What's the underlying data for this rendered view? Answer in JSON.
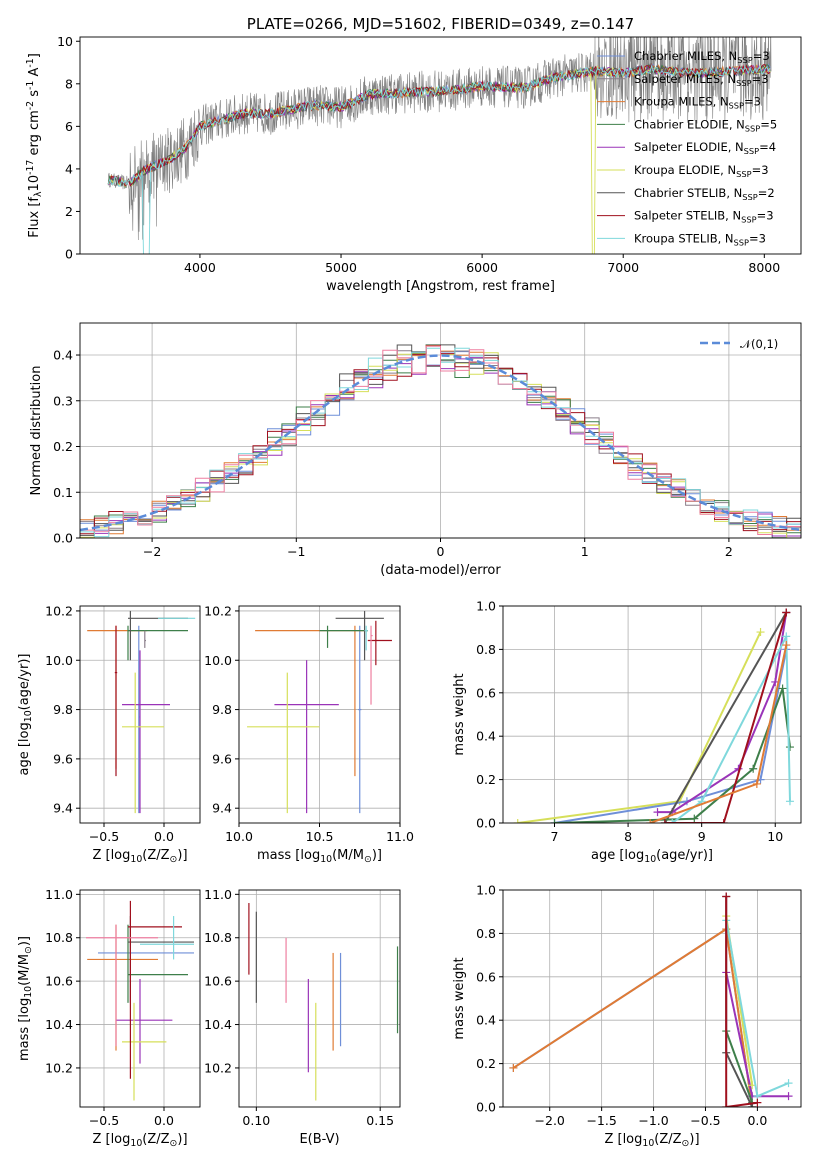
{
  "colors": {
    "Chabrier MILES": "#6f8fd8",
    "Salpeter MILES": "#8a7f8a",
    "Kroupa MILES": "#e07b34",
    "Chabrier ELODIE": "#3e7f4a",
    "Salpeter ELODIE": "#9a34b8",
    "Kroupa ELODIE": "#d6df5a",
    "Chabrier STELIB": "#555555",
    "Salpeter STELIB": "#a0101e",
    "Kroupa STELIB": "#7fd8dc",
    "normal": "#5b8bd8",
    "data": "#808080",
    "pink": "#ee7fa0"
  },
  "chart_data": [
    {
      "id": "spectrum",
      "type": "line",
      "title": "PLATE=0266, MJD=51602, FIBERID=0349, z=0.147",
      "xlabel": "wavelength [Angstrom, rest frame]",
      "ylabel": "Flux [f$_\\lambda$10$^{-17}$ erg cm$^{-2}$ s$^{-1}$ A$^{-1}$]",
      "xlim": [
        3150,
        8260
      ],
      "ylim": [
        0,
        10.2
      ],
      "xticks": [
        "4000",
        "5000",
        "6000",
        "7000",
        "8000"
      ],
      "yticks": [
        "0",
        "2",
        "4",
        "6",
        "8",
        "10"
      ],
      "grid": false,
      "legend_position": "top-right",
      "continuum": {
        "x": [
          3350,
          3500,
          3600,
          3800,
          3900,
          4000,
          4100,
          4300,
          4500,
          4800,
          5000,
          5200,
          5500,
          5800,
          6000,
          6300,
          6500,
          6800,
          7000,
          7200,
          7500,
          7800,
          8050
        ],
        "y": [
          3.5,
          3.3,
          3.9,
          4.5,
          5.0,
          6.0,
          6.2,
          6.6,
          6.6,
          7.0,
          6.9,
          7.5,
          7.6,
          7.7,
          7.9,
          7.8,
          8.3,
          8.6,
          8.5,
          8.7,
          8.5,
          8.6,
          8.7
        ]
      },
      "series": [
        {
          "name": "Chabrier MILES",
          "label": "Chabrier MILES, N$_{SSP}$=3"
        },
        {
          "name": "Salpeter MILES",
          "label": "Salpeter MILES, N$_{SSP}$=3"
        },
        {
          "name": "Kroupa MILES",
          "label": "Kroupa MILES, N$_{SSP}$=3"
        },
        {
          "name": "Chabrier ELODIE",
          "label": "Chabrier ELODIE, N$_{SSP}$=5"
        },
        {
          "name": "Salpeter ELODIE",
          "label": "Salpeter ELODIE, N$_{SSP}$=4"
        },
        {
          "name": "Kroupa ELODIE",
          "label": "Kroupa ELODIE, N$_{SSP}$=3"
        },
        {
          "name": "Chabrier STELIB",
          "label": "Chabrier STELIB, N$_{SSP}$=2"
        },
        {
          "name": "Salpeter STELIB",
          "label": "Salpeter STELIB, N$_{SSP}$=3"
        },
        {
          "name": "Kroupa STELIB",
          "label": "Kroupa STELIB, N$_{SSP}$=3"
        }
      ]
    },
    {
      "id": "residuals",
      "type": "line",
      "xlabel": "(data-model)/error",
      "ylabel": "Normed distribution",
      "xlim": [
        -2.5,
        2.5
      ],
      "ylim": [
        0,
        0.47
      ],
      "xticks": [
        "−2",
        "−1",
        "0",
        "1",
        "2"
      ],
      "xtick_values": [
        -2,
        -1,
        0,
        1,
        2
      ],
      "yticks": [
        "0.0",
        "0.1",
        "0.2",
        "0.3",
        "0.4"
      ],
      "ytick_values": [
        0,
        0.1,
        0.2,
        0.3,
        0.4
      ],
      "grid": true,
      "legend_position": "top-right",
      "normal_label": "$\\mathcal{N}(0,1)$",
      "bin_width": 0.1
    },
    {
      "id": "z-age",
      "type": "scatter",
      "xlabel": "Z [log$_{10}$(Z/Z$_\\odot$)]",
      "ylabel": "age  [log$_{10}$(age/yr)]",
      "xlim": [
        -0.7,
        0.3
      ],
      "ylim": [
        9.34,
        10.22
      ],
      "xticks": [
        "−0.5",
        "0.0"
      ],
      "xtick_values": [
        -0.5,
        0.0
      ],
      "yticks": [
        "9.4",
        "9.6",
        "9.8",
        "10.0",
        "10.2"
      ],
      "ytick_values": [
        9.4,
        9.6,
        9.8,
        10.0,
        10.2
      ],
      "grid": true,
      "points": [
        {
          "s": "Chabrier MILES",
          "x": -0.21,
          "xe": [
            -0.21,
            -0.2
          ],
          "y": 9.77,
          "ye": [
            9.38,
            10.14
          ]
        },
        {
          "s": "Kroupa MILES",
          "x": -0.4,
          "xe": [
            -0.64,
            -0.14
          ],
          "y": 10.12,
          "ye": [
            9.56,
            10.14
          ]
        },
        {
          "s": "Chabrier ELODIE",
          "x": -0.3,
          "xe": [
            -0.3,
            0.2
          ],
          "y": 10.12,
          "ye": [
            10.0,
            10.14
          ]
        },
        {
          "s": "Salpeter ELODIE",
          "x": -0.2,
          "xe": [
            -0.35,
            0.05
          ],
          "y": 9.82,
          "ye": [
            9.38,
            10.04
          ]
        },
        {
          "s": "Kroupa ELODIE",
          "x": -0.24,
          "xe": [
            -0.35,
            0.0
          ],
          "y": 9.73,
          "ye": [
            9.38,
            9.95
          ]
        },
        {
          "s": "Chabrier STELIB",
          "x": -0.28,
          "xe": [
            -0.3,
            0.2
          ],
          "y": 10.17,
          "ye": [
            10.0,
            10.2
          ]
        },
        {
          "s": "Salpeter STELIB",
          "x": -0.4,
          "xe": [
            -0.41,
            -0.39
          ],
          "y": 9.95,
          "ye": [
            9.53,
            10.14
          ]
        },
        {
          "s": "Kroupa STELIB",
          "x": 0.08,
          "xe": [
            -0.05,
            0.26
          ],
          "y": 10.17,
          "ye": [
            10.17,
            10.17
          ]
        },
        {
          "s": "Salpeter MILES",
          "x": -0.16,
          "xe": [
            -0.16,
            -0.15
          ],
          "y": 10.08,
          "ye": [
            10.05,
            10.12
          ]
        }
      ]
    },
    {
      "id": "mass-age",
      "type": "scatter",
      "xlabel": "mass [log$_{10}$(M/M$_\\odot$)]",
      "ylabel": "",
      "xlim": [
        10.0,
        11.0
      ],
      "ylim": [
        9.34,
        10.22
      ],
      "xticks": [
        "10.0",
        "10.5",
        "11.0"
      ],
      "xtick_values": [
        10.0,
        10.5,
        11.0
      ],
      "yticks": [
        "9.4",
        "9.6",
        "9.8",
        "10.0",
        "10.2"
      ],
      "ytick_values": [
        9.4,
        9.6,
        9.8,
        10.0,
        10.2
      ],
      "grid": true,
      "points": [
        {
          "s": "Chabrier MILES",
          "x": 10.75,
          "xe": [
            10.74,
            10.76
          ],
          "y": 9.8,
          "ye": [
            9.38,
            10.14
          ]
        },
        {
          "s": "Kroupa MILES",
          "x": 10.72,
          "xe": [
            10.1,
            10.8
          ],
          "y": 10.12,
          "ye": [
            9.53,
            10.14
          ]
        },
        {
          "s": "Chabrier ELODIE",
          "x": 10.55,
          "xe": [
            10.5,
            10.8
          ],
          "y": 10.12,
          "ye": [
            10.05,
            10.14
          ]
        },
        {
          "s": "Salpeter ELODIE",
          "x": 10.42,
          "xe": [
            10.22,
            10.62
          ],
          "y": 9.82,
          "ye": [
            9.38,
            10.0
          ]
        },
        {
          "s": "Kroupa ELODIE",
          "x": 10.3,
          "xe": [
            10.05,
            10.5
          ],
          "y": 9.73,
          "ye": [
            9.38,
            9.95
          ]
        },
        {
          "s": "Chabrier STELIB",
          "x": 10.78,
          "xe": [
            10.6,
            10.9
          ],
          "y": 10.17,
          "ye": [
            10.0,
            10.2
          ]
        },
        {
          "s": "Salpeter STELIB",
          "x": 10.85,
          "xe": [
            10.8,
            10.95
          ],
          "y": 10.08,
          "ye": [
            9.98,
            10.16
          ]
        },
        {
          "s": "Kroupa STELIB",
          "x": 10.79,
          "xe": [
            10.78,
            10.8
          ],
          "y": 10.12,
          "ye": [
            10.04,
            10.14
          ]
        },
        {
          "s": "pink",
          "x": 10.82,
          "xe": [
            10.82,
            10.83
          ],
          "y": 10.1,
          "ye": [
            9.82,
            10.14
          ]
        }
      ]
    },
    {
      "id": "age-weight",
      "type": "line",
      "xlabel": "age  [log$_{10}$(age/yr)]",
      "ylabel": "mass weight",
      "xlim": [
        6.3,
        10.35
      ],
      "ylim": [
        0,
        1.0
      ],
      "xticks": [
        "7",
        "8",
        "9",
        "10"
      ],
      "xtick_values": [
        7,
        8,
        9,
        10
      ],
      "yticks": [
        "0.0",
        "0.2",
        "0.4",
        "0.6",
        "0.8",
        "1.0"
      ],
      "ytick_values": [
        0,
        0.2,
        0.4,
        0.6,
        0.8,
        1.0
      ],
      "grid": true,
      "series": [
        {
          "s": "Kroupa ELODIE",
          "x": [
            6.5,
            8.7,
            9.8
          ],
          "y": [
            0.0,
            0.1,
            0.88
          ]
        },
        {
          "s": "Chabrier MILES",
          "x": [
            7.0,
            8.8,
            9.8,
            10.15
          ],
          "y": [
            0.0,
            0.1,
            0.2,
            0.8
          ]
        },
        {
          "s": "Salpeter ELODIE",
          "x": [
            8.4,
            8.6,
            9.5,
            10.0,
            10.15
          ],
          "y": [
            0.05,
            0.05,
            0.25,
            0.65,
            0.97
          ]
        },
        {
          "s": "Chabrier STELIB",
          "x": [
            8.5,
            10.15
          ],
          "y": [
            0.0,
            0.97
          ]
        },
        {
          "s": "Chabrier ELODIE",
          "x": [
            7.0,
            8.9,
            9.7,
            10.1,
            10.2
          ],
          "y": [
            0.0,
            0.02,
            0.25,
            0.62,
            0.35
          ]
        },
        {
          "s": "Kroupa STELIB",
          "x": [
            8.6,
            9.0,
            10.15,
            10.2
          ],
          "y": [
            0.0,
            0.1,
            0.86,
            0.1
          ]
        },
        {
          "s": "Salpeter STELIB",
          "x": [
            8.5,
            9.3,
            10.15
          ],
          "y": [
            0.0,
            0.0,
            0.97
          ]
        },
        {
          "s": "Kroupa MILES",
          "x": [
            8.3,
            9.75,
            10.15
          ],
          "y": [
            0.0,
            0.18,
            0.82
          ]
        }
      ]
    },
    {
      "id": "z-mass",
      "type": "scatter",
      "xlabel": "Z [log$_{10}$(Z/Z$_\\odot$)]",
      "ylabel": "mass [log$_{10}$(M/M$_\\odot$)]",
      "xlim": [
        -0.7,
        0.3
      ],
      "ylim": [
        10.02,
        11.02
      ],
      "xticks": [
        "−0.5",
        "0.0"
      ],
      "xtick_values": [
        -0.5,
        0.0
      ],
      "yticks": [
        "10.2",
        "10.4",
        "10.6",
        "10.8",
        "11.0"
      ],
      "ytick_values": [
        10.2,
        10.4,
        10.6,
        10.8,
        11.0
      ],
      "grid": true,
      "points": [
        {
          "s": "Chabrier MILES",
          "x": -0.3,
          "xe": [
            -0.55,
            0.25
          ],
          "y": 10.73,
          "ye": [
            10.73,
            10.73
          ]
        },
        {
          "s": "Kroupa MILES",
          "x": -0.4,
          "xe": [
            -0.64,
            -0.05
          ],
          "y": 10.7,
          "ye": [
            10.28,
            10.86
          ]
        },
        {
          "s": "Chabrier ELODIE",
          "x": -0.3,
          "xe": [
            -0.3,
            0.2
          ],
          "y": 10.63,
          "ye": [
            10.5,
            10.86
          ]
        },
        {
          "s": "Salpeter ELODIE",
          "x": -0.2,
          "xe": [
            -0.4,
            0.07
          ],
          "y": 10.42,
          "ye": [
            10.22,
            10.61
          ]
        },
        {
          "s": "Kroupa ELODIE",
          "x": -0.25,
          "xe": [
            -0.35,
            0.02
          ],
          "y": 10.32,
          "ye": [
            10.05,
            10.5
          ]
        },
        {
          "s": "Chabrier STELIB",
          "x": -0.28,
          "xe": [
            -0.3,
            0.25
          ],
          "y": 10.78,
          "ye": [
            10.5,
            10.9
          ]
        },
        {
          "s": "Salpeter STELIB",
          "x": -0.28,
          "xe": [
            -0.3,
            0.15
          ],
          "y": 10.85,
          "ye": [
            10.15,
            10.97
          ]
        },
        {
          "s": "Kroupa STELIB",
          "x": 0.08,
          "xe": [
            -0.2,
            0.25
          ],
          "y": 10.77,
          "ye": [
            10.7,
            10.9
          ]
        },
        {
          "s": "pink",
          "x": -0.4,
          "xe": [
            -0.65,
            -0.05
          ],
          "y": 10.8,
          "ye": [
            10.3,
            10.86
          ]
        }
      ]
    },
    {
      "id": "ebv-mass",
      "type": "scatter",
      "xlabel": "E(B-V)",
      "ylabel": "",
      "xlim": [
        0.093,
        0.158
      ],
      "ylim": [
        10.02,
        11.02
      ],
      "xticks": [
        "0.10",
        "0.15"
      ],
      "xtick_values": [
        0.1,
        0.15
      ],
      "yticks": [
        "10.2",
        "10.4",
        "10.6",
        "10.8",
        "11.0"
      ],
      "ytick_values": [
        10.2,
        10.4,
        10.6,
        10.8,
        11.0
      ],
      "grid": true,
      "points": [
        {
          "s": "Salpeter STELIB",
          "x": 0.097,
          "ye": [
            10.63,
            10.96
          ]
        },
        {
          "s": "Chabrier STELIB",
          "x": 0.1,
          "ye": [
            10.5,
            10.92
          ]
        },
        {
          "s": "pink",
          "x": 0.112,
          "ye": [
            10.5,
            10.8
          ]
        },
        {
          "s": "Salpeter ELODIE",
          "x": 0.121,
          "ye": [
            10.18,
            10.61
          ]
        },
        {
          "s": "Kroupa ELODIE",
          "x": 0.124,
          "ye": [
            10.05,
            10.5
          ]
        },
        {
          "s": "Kroupa MILES",
          "x": 0.131,
          "ye": [
            10.28,
            10.73
          ]
        },
        {
          "s": "Chabrier MILES",
          "x": 0.134,
          "ye": [
            10.3,
            10.73
          ]
        },
        {
          "s": "Chabrier ELODIE",
          "x": 0.157,
          "ye": [
            10.36,
            10.76
          ]
        }
      ]
    },
    {
      "id": "z-weight",
      "type": "line",
      "xlabel": "Z [log$_{10}$(Z/Z$_\\odot$)]",
      "ylabel": "mass weight",
      "xlim": [
        -2.45,
        0.42
      ],
      "ylim": [
        0,
        1.0
      ],
      "xticks": [
        "−2.0",
        "−1.5",
        "−1.0",
        "−0.5",
        "0.0"
      ],
      "xtick_values": [
        -2.0,
        -1.5,
        -1.0,
        -0.5,
        0.0
      ],
      "yticks": [
        "0.0",
        "0.2",
        "0.4",
        "0.6",
        "0.8",
        "1.0"
      ],
      "ytick_values": [
        0,
        0.2,
        0.4,
        0.6,
        0.8,
        1.0
      ],
      "grid": true,
      "series": [
        {
          "s": "Chabrier MILES",
          "x": [
            -2.35,
            -0.3,
            -0.05
          ],
          "y": [
            0.18,
            0.82,
            0.0
          ]
        },
        {
          "s": "Kroupa MILES",
          "x": [
            -2.35,
            -0.3,
            -0.05
          ],
          "y": [
            0.18,
            0.82,
            0.0
          ]
        },
        {
          "s": "Salpeter ELODIE",
          "x": [
            -0.3,
            -0.05,
            0.3
          ],
          "y": [
            0.62,
            0.05,
            0.05
          ]
        },
        {
          "s": "Kroupa ELODIE",
          "x": [
            -0.3,
            -0.05
          ],
          "y": [
            0.88,
            0.1
          ]
        },
        {
          "s": "Kroupa STELIB",
          "x": [
            -0.3,
            0.0,
            0.3
          ],
          "y": [
            0.86,
            0.05,
            0.11
          ]
        },
        {
          "s": "Chabrier ELODIE",
          "x": [
            -0.3,
            -0.05
          ],
          "y": [
            0.35,
            0.02
          ]
        },
        {
          "s": "Chabrier STELIB",
          "x": [
            -0.3,
            -0.3,
            -0.05
          ],
          "y": [
            0.97,
            0.25,
            0.0
          ]
        },
        {
          "s": "Salpeter STELIB",
          "x": [
            -0.3,
            -0.3,
            0.0
          ],
          "y": [
            0.97,
            0.0,
            0.02
          ]
        }
      ]
    }
  ]
}
